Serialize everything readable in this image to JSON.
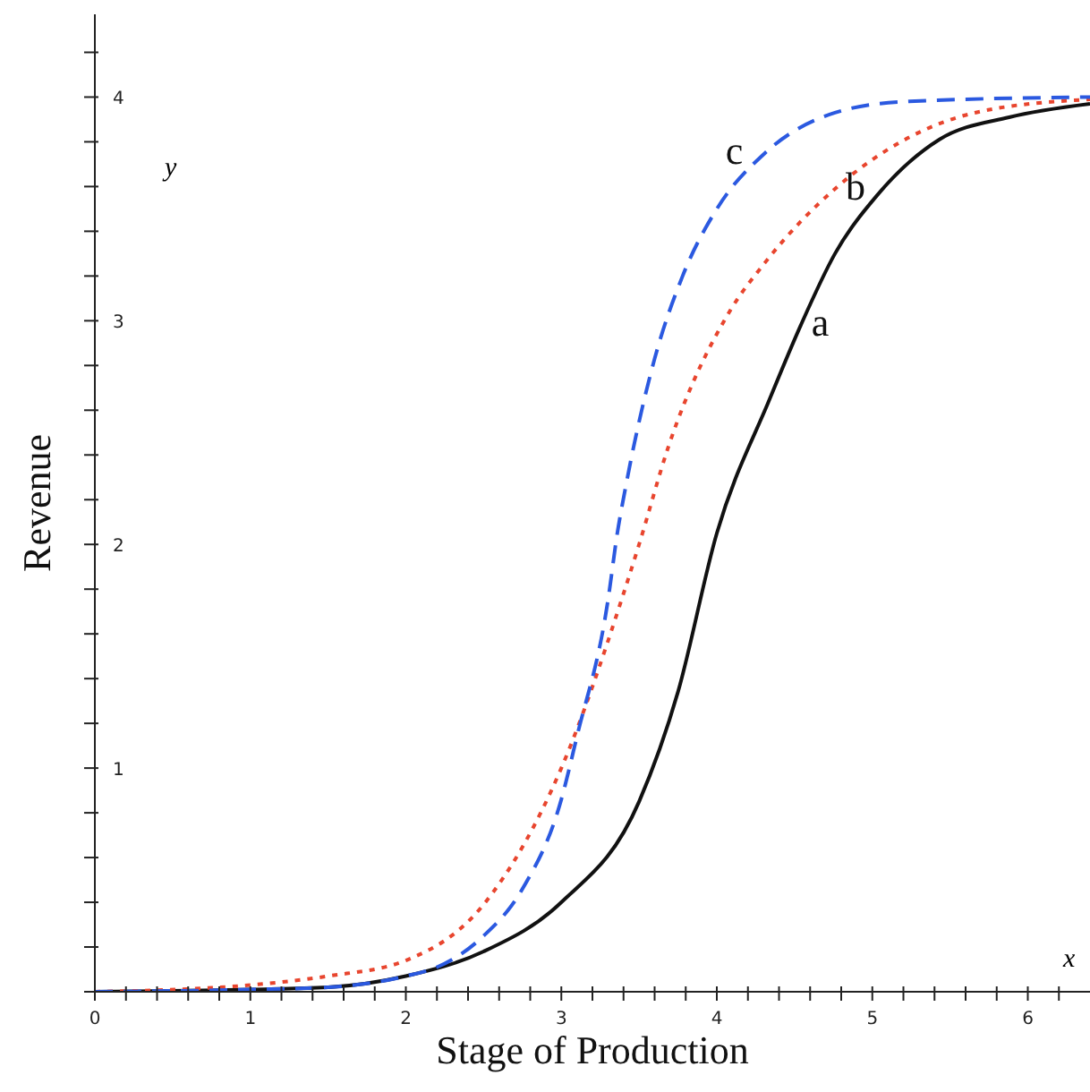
{
  "chart_data": {
    "type": "line",
    "xlabel": "Stage of Production",
    "ylabel": "Revenue",
    "annotations": [
      "y",
      "x"
    ],
    "xlim": [
      0,
      6.4
    ],
    "ylim": [
      0,
      4.37
    ],
    "xticks": [
      0,
      {
        "value": 0.2,
        "label": null
      },
      {
        "value": 0.4,
        "label": null
      },
      {
        "value": 0.6,
        "label": null
      },
      {
        "value": 0.8,
        "label": null
      },
      1,
      {
        "value": 1.2,
        "label": null
      },
      {
        "value": 1.4,
        "label": null
      },
      {
        "value": 1.6,
        "label": null
      },
      {
        "value": 1.8,
        "label": null
      },
      2,
      {
        "value": 2.2,
        "label": null
      },
      {
        "value": 2.4,
        "label": null
      },
      {
        "value": 2.6,
        "label": null
      },
      {
        "value": 2.8,
        "label": null
      },
      3,
      {
        "value": 3.2,
        "label": null
      },
      {
        "value": 3.4,
        "label": null
      },
      {
        "value": 3.6,
        "label": null
      },
      {
        "value": 3.8,
        "label": null
      },
      4,
      {
        "value": 4.2,
        "label": null
      },
      {
        "value": 4.4,
        "label": null
      },
      {
        "value": 4.6,
        "label": null
      },
      {
        "value": 4.8,
        "label": null
      },
      5,
      {
        "value": 5.2,
        "label": null
      },
      {
        "value": 5.4,
        "label": null
      },
      {
        "value": 5.6,
        "label": null
      },
      {
        "value": 5.8,
        "label": null
      },
      6,
      {
        "value": 6.2,
        "label": null
      }
    ],
    "yticks": [
      {
        "value": 0,
        "label": null
      },
      {
        "value": 0.2,
        "label": null
      },
      {
        "value": 0.4,
        "label": null
      },
      {
        "value": 0.6,
        "label": null
      },
      {
        "value": 0.8,
        "label": null
      },
      1,
      {
        "value": 1.2,
        "label": null
      },
      {
        "value": 1.4,
        "label": null
      },
      {
        "value": 1.6,
        "label": null
      },
      {
        "value": 1.8,
        "label": null
      },
      2,
      {
        "value": 2.2,
        "label": null
      },
      {
        "value": 2.4,
        "label": null
      },
      {
        "value": 2.6,
        "label": null
      },
      {
        "value": 2.8,
        "label": null
      },
      3,
      {
        "value": 3.2,
        "label": null
      },
      {
        "value": 3.4,
        "label": null
      },
      {
        "value": 3.6,
        "label": null
      },
      {
        "value": 3.8,
        "label": null
      },
      4,
      {
        "value": 4.2,
        "label": null
      }
    ],
    "series": [
      {
        "name": "a",
        "color": "#111111",
        "line_style": "solid",
        "x": [
          0,
          1,
          1.5,
          2,
          2.5,
          3,
          3.5,
          3.75,
          4,
          4.34,
          4.54,
          4.76,
          5.03,
          5.43,
          5.88,
          6.4
        ],
        "values": [
          0,
          0.01,
          0.02,
          0.07,
          0.18,
          0.4,
          0.85,
          1.34,
          2.05,
          2.65,
          2.98,
          3.3,
          3.56,
          3.81,
          3.91,
          3.97
        ]
      },
      {
        "name": "b",
        "color": "#e8452e",
        "line_style": "dotted",
        "x": [
          0,
          1,
          1.5,
          2,
          2.5,
          3,
          3.4,
          3.5,
          3.69,
          4.09,
          4.31,
          4.76,
          5.21,
          5.66,
          6.4
        ],
        "values": [
          0,
          0.03,
          0.07,
          0.14,
          0.39,
          1.0,
          1.78,
          2.0,
          2.44,
          3.05,
          3.26,
          3.59,
          3.81,
          3.93,
          3.99
        ]
      },
      {
        "name": "c",
        "color": "#2b59e0",
        "line_style": "dashed",
        "x": [
          0,
          1,
          1.5,
          2,
          2.2,
          2.5,
          2.75,
          3,
          3.1,
          3.3,
          3.36,
          3.42,
          3.6,
          3.78,
          4.0,
          4.31,
          4.76,
          5.21,
          6.4
        ],
        "values": [
          0,
          0.01,
          0.02,
          0.07,
          0.11,
          0.25,
          0.46,
          0.86,
          1.14,
          1.75,
          2.05,
          2.28,
          2.83,
          3.2,
          3.5,
          3.75,
          3.93,
          3.98,
          4.0
        ]
      }
    ]
  }
}
